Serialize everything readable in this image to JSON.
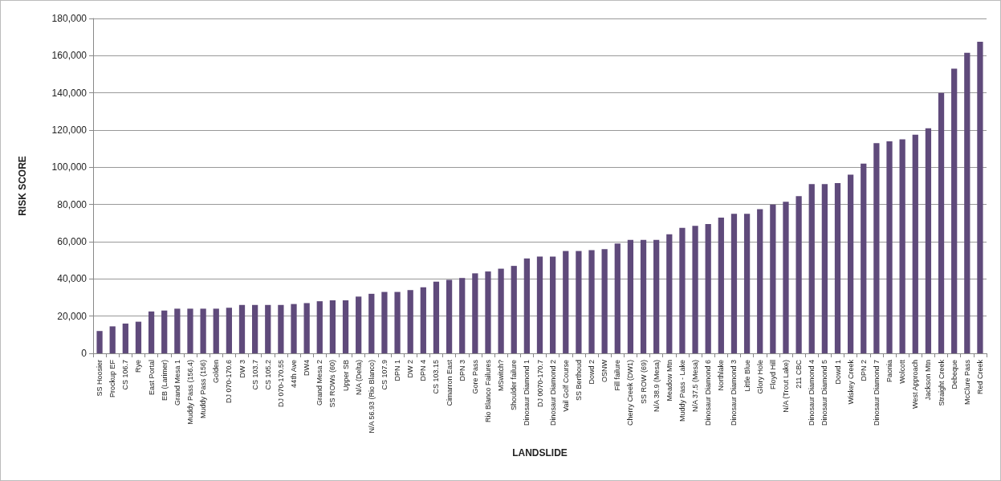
{
  "chart_data": {
    "type": "bar",
    "xlabel": "LANDSLIDE",
    "ylabel": "RISK SCORE",
    "categories": [
      "SS Hoosier",
      "Prockup EF",
      "CS 106.7",
      "Rye",
      "East Portal",
      "EB (Larimer)",
      "Grand Mesa 1",
      "Muddy Pass (156.4)",
      "Muddy Pass (156)",
      "Golden",
      "DJ 070-170.6",
      "DW 3",
      "CS 103.7",
      "CS 105.2",
      "DJ 070-170.55",
      "44th Ave",
      "DW4",
      "Grand Mesa 2",
      "SS ROWs (60)",
      "Upper SB",
      "N/A (Delta)",
      "N/A 56.93 (Rio Blanco)",
      "CS 107.9",
      "DPN 1",
      "DW 2",
      "DPN 4",
      "CS 103.15",
      "Cimarron East",
      "DPN 3",
      "Gore Pass",
      "Rio Blanco Failures",
      "MSwitch?",
      "Shoulder failure",
      "Dinosaur Diamond 1",
      "DJ 0070-170.7",
      "Dinosaur Diamond 2",
      "Vail Golf Course",
      "SS Berthoud",
      "Dowd 2",
      "OSNW",
      "Fill failure",
      "Cherry Creek (DW1)",
      "SS ROW (69)",
      "N/A 38.9 (Mesa)",
      "Meadow Mtn",
      "Muddy Pass - Lake",
      "N/A 37.5 (Mesa)",
      "Dinosaur Diamond 6",
      "Northlake",
      "Dinosaur Diamond 3",
      "Little Blue",
      "Glory Hole",
      "Floyd Hill",
      "N/A (Trout Lake)",
      "211 CBC",
      "Dinosaur Diamond 4",
      "Dinosaur Diamond 5",
      "Dowd 1",
      "Wiskey Creek",
      "DPN 2",
      "Dinosaur Diamond 7",
      "Paonia",
      "Wolcott",
      "West Approach",
      "Jackson Mtn",
      "Straight Creek",
      "Debeque",
      "McClure Pass",
      "Red Creek"
    ],
    "values": [
      12000,
      14500,
      16000,
      17000,
      22500,
      23000,
      24000,
      24000,
      24000,
      24000,
      24500,
      26000,
      26000,
      26000,
      26000,
      26500,
      27000,
      28000,
      28500,
      28500,
      30500,
      32000,
      33000,
      33000,
      34000,
      35500,
      38500,
      39500,
      40500,
      43000,
      44000,
      45500,
      47000,
      51000,
      52000,
      52000,
      55000,
      55000,
      55500,
      56000,
      59000,
      61000,
      61000,
      61000,
      64000,
      67500,
      68500,
      69500,
      73000,
      75000,
      75000,
      77500,
      80000,
      81500,
      84500,
      91000,
      91000,
      91500,
      96000,
      102000,
      113000,
      114000,
      115000,
      117500,
      121000,
      140000,
      153000,
      161500,
      167500
    ],
    "color": "#5f4a7b",
    "ylim": [
      0,
      180000
    ],
    "yticks": [
      0,
      {
        "value": 20000,
        "label": "20,000"
      },
      {
        "value": 40000,
        "label": "40,000"
      },
      {
        "value": 60000,
        "label": "60,000"
      },
      {
        "value": 80000,
        "label": "80,000"
      },
      {
        "value": 100000,
        "label": "100,000"
      },
      {
        "value": 120000,
        "label": "120,000"
      },
      {
        "value": 140000,
        "label": "140,000"
      },
      {
        "value": 160000,
        "label": "160,000"
      },
      {
        "value": 180000,
        "label": "180,000"
      }
    ],
    "grid": "y"
  }
}
